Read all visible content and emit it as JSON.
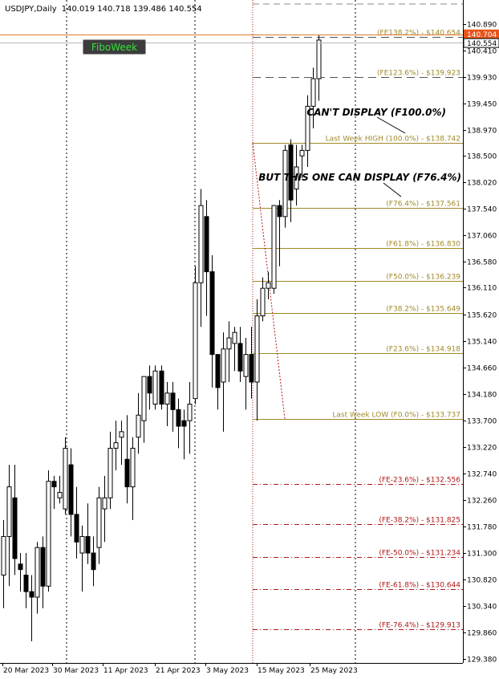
{
  "header": {
    "symbol": "USDJPY,Daily",
    "ohlc": "140.019 140.718 139.486 140.554"
  },
  "fibo_button": {
    "label": "FiboWeek"
  },
  "annotations": {
    "cant_display": "CAN'T  DISPLAY (F100.0%)",
    "can_display": "BUT THIS ONE CAN DISPLAY (F76.4%)"
  },
  "colors": {
    "fib_gold": "#a08a28",
    "fib_red": "#b01818",
    "hline_orange": "#e07b2c",
    "price_tag_orange": "#e8541a",
    "grid": "#000000"
  },
  "chart_data": {
    "type": "candlestick",
    "ylim": [
      129.38,
      141.5
    ],
    "y_ticks": [
      "140.890",
      "140.410",
      "139.930",
      "139.450",
      "138.970",
      "138.500",
      "138.020",
      "137.540",
      "137.060",
      "136.580",
      "136.110",
      "135.620",
      "135.140",
      "134.660",
      "134.180",
      "133.700",
      "133.220",
      "132.740",
      "132.260",
      "131.780",
      "131.300",
      "130.820",
      "130.340",
      "129.860",
      "129.380"
    ],
    "x_ticks": [
      "20 Mar 2023",
      "30 Mar 2023",
      "11 Apr 2023",
      "21 Apr 2023",
      "3 May 2023",
      "15 May 2023",
      "25 May 2023"
    ],
    "current_price": 140.554,
    "current_price_label": "140.554",
    "hline_price": 140.704,
    "hline_label": "140.704",
    "candles": [
      {
        "o": 130.9,
        "h": 131.9,
        "l": 130.3,
        "c": 131.6
      },
      {
        "o": 131.6,
        "h": 132.9,
        "l": 130.7,
        "c": 132.5
      },
      {
        "o": 132.3,
        "h": 132.9,
        "l": 130.9,
        "c": 131.2
      },
      {
        "o": 131.1,
        "h": 131.3,
        "l": 130.6,
        "c": 131.0
      },
      {
        "o": 130.9,
        "h": 131.3,
        "l": 130.3,
        "c": 130.6
      },
      {
        "o": 130.6,
        "h": 130.9,
        "l": 129.7,
        "c": 130.5
      },
      {
        "o": 130.5,
        "h": 131.5,
        "l": 130.2,
        "c": 131.4
      },
      {
        "o": 131.4,
        "h": 131.6,
        "l": 130.3,
        "c": 130.7
      },
      {
        "o": 130.7,
        "h": 132.8,
        "l": 130.6,
        "c": 132.6
      },
      {
        "o": 132.6,
        "h": 132.7,
        "l": 132.1,
        "c": 132.5
      },
      {
        "o": 132.3,
        "h": 132.7,
        "l": 132.2,
        "c": 132.4
      },
      {
        "o": 132.1,
        "h": 133.4,
        "l": 132.0,
        "c": 133.2
      },
      {
        "o": 132.9,
        "h": 133.2,
        "l": 131.6,
        "c": 132.0
      },
      {
        "o": 132.0,
        "h": 132.5,
        "l": 131.2,
        "c": 131.5
      },
      {
        "o": 131.3,
        "h": 131.8,
        "l": 130.6,
        "c": 131.6
      },
      {
        "o": 131.6,
        "h": 132.2,
        "l": 131.1,
        "c": 131.3
      },
      {
        "o": 131.3,
        "h": 131.6,
        "l": 130.7,
        "c": 131.0
      },
      {
        "o": 131.4,
        "h": 132.5,
        "l": 131.1,
        "c": 132.3
      },
      {
        "o": 132.1,
        "h": 132.7,
        "l": 131.5,
        "c": 132.3
      },
      {
        "o": 132.3,
        "h": 133.5,
        "l": 132.1,
        "c": 133.2
      },
      {
        "o": 133.2,
        "h": 133.7,
        "l": 132.8,
        "c": 133.3
      },
      {
        "o": 133.4,
        "h": 133.7,
        "l": 132.9,
        "c": 133.5
      },
      {
        "o": 133.0,
        "h": 133.8,
        "l": 132.2,
        "c": 132.5
      },
      {
        "o": 132.5,
        "h": 133.4,
        "l": 131.9,
        "c": 133.2
      },
      {
        "o": 133.4,
        "h": 134.2,
        "l": 133.1,
        "c": 133.8
      },
      {
        "o": 133.7,
        "h": 134.5,
        "l": 133.3,
        "c": 134.5
      },
      {
        "o": 134.5,
        "h": 134.7,
        "l": 133.9,
        "c": 134.2
      },
      {
        "o": 134.0,
        "h": 134.7,
        "l": 133.9,
        "c": 134.6
      },
      {
        "o": 134.6,
        "h": 134.7,
        "l": 133.9,
        "c": 134.0
      },
      {
        "o": 134.0,
        "h": 134.4,
        "l": 133.6,
        "c": 134.2
      },
      {
        "o": 134.2,
        "h": 134.4,
        "l": 133.5,
        "c": 133.9
      },
      {
        "o": 133.9,
        "h": 134.1,
        "l": 133.2,
        "c": 133.6
      },
      {
        "o": 133.7,
        "h": 133.9,
        "l": 133.0,
        "c": 133.6
      },
      {
        "o": 133.7,
        "h": 134.4,
        "l": 133.1,
        "c": 134.0
      },
      {
        "o": 134.1,
        "h": 136.5,
        "l": 134.0,
        "c": 136.2
      },
      {
        "o": 136.2,
        "h": 137.9,
        "l": 135.4,
        "c": 137.6
      },
      {
        "o": 137.4,
        "h": 137.7,
        "l": 135.6,
        "c": 136.4
      },
      {
        "o": 136.4,
        "h": 136.7,
        "l": 134.3,
        "c": 134.9
      },
      {
        "o": 134.9,
        "h": 134.9,
        "l": 133.9,
        "c": 134.3
      },
      {
        "o": 134.4,
        "h": 135.3,
        "l": 133.5,
        "c": 135.0
      },
      {
        "o": 135.0,
        "h": 135.5,
        "l": 134.4,
        "c": 135.2
      },
      {
        "o": 135.1,
        "h": 135.4,
        "l": 134.6,
        "c": 135.3
      },
      {
        "o": 135.1,
        "h": 135.4,
        "l": 134.4,
        "c": 134.6
      },
      {
        "o": 134.5,
        "h": 135.2,
        "l": 133.9,
        "c": 134.9
      },
      {
        "o": 134.9,
        "h": 135.4,
        "l": 134.1,
        "c": 134.4
      },
      {
        "o": 134.4,
        "h": 135.9,
        "l": 133.7,
        "c": 135.6
      },
      {
        "o": 135.6,
        "h": 136.3,
        "l": 135.5,
        "c": 136.1
      },
      {
        "o": 136.1,
        "h": 136.4,
        "l": 135.9,
        "c": 136.2
      },
      {
        "o": 136.1,
        "h": 137.6,
        "l": 136.0,
        "c": 137.6
      },
      {
        "o": 137.6,
        "h": 137.7,
        "l": 136.5,
        "c": 137.4
      },
      {
        "o": 137.4,
        "h": 138.7,
        "l": 137.2,
        "c": 138.6
      },
      {
        "o": 138.7,
        "h": 138.8,
        "l": 137.3,
        "c": 137.7
      },
      {
        "o": 137.9,
        "h": 138.7,
        "l": 137.6,
        "c": 138.3
      },
      {
        "o": 138.5,
        "h": 138.7,
        "l": 138.1,
        "c": 138.6
      },
      {
        "o": 138.6,
        "h": 139.6,
        "l": 138.3,
        "c": 139.4
      },
      {
        "o": 139.4,
        "h": 140.1,
        "l": 139.0,
        "c": 139.9
      },
      {
        "o": 139.9,
        "h": 140.7,
        "l": 139.5,
        "c": 140.6
      }
    ],
    "fib_levels": [
      {
        "label": "(FE138.2%) - $140.654",
        "price": 140.654,
        "kind": "ext_up"
      },
      {
        "label": "(FE123.6%) - $139.923",
        "price": 139.923,
        "kind": "ext_up"
      },
      {
        "label": "Last Week HIGH (100.0%) - $138.742",
        "price": 138.742,
        "kind": "fib"
      },
      {
        "label": "(F76.4%) - $137.561",
        "price": 137.561,
        "kind": "fib"
      },
      {
        "label": "(F61.8%) - $136.830",
        "price": 136.83,
        "kind": "fib"
      },
      {
        "label": "(F50.0%) - $136.239",
        "price": 136.239,
        "kind": "fib"
      },
      {
        "label": "(F38.2%) - $135.649",
        "price": 135.649,
        "kind": "fib"
      },
      {
        "label": "(F23.6%) - $134.918",
        "price": 134.918,
        "kind": "fib"
      },
      {
        "label": "Last Week LOW (F0.0%) - $133.737",
        "price": 133.737,
        "kind": "fib"
      },
      {
        "label": "(FE-23.6%) - $132.556",
        "price": 132.556,
        "kind": "ext_down"
      },
      {
        "label": "(FE-38.2%) - $131.825",
        "price": 131.825,
        "kind": "ext_down"
      },
      {
        "label": "(FE-50.0%) - $131.234",
        "price": 131.234,
        "kind": "ext_down"
      },
      {
        "label": "(FE-61.8%) - $130.644",
        "price": 130.644,
        "kind": "ext_down"
      },
      {
        "label": "(FE-76.4%) - $129.913",
        "price": 129.913,
        "kind": "ext_down"
      }
    ]
  }
}
